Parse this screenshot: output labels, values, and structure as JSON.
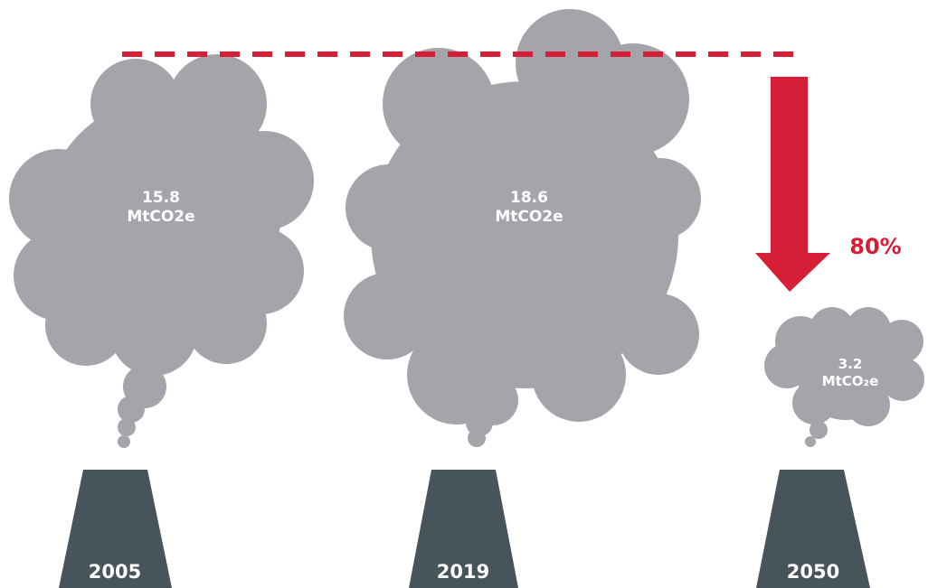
{
  "items": [
    {
      "year": "2005",
      "value": "15.8",
      "unit": "MtCO2e"
    },
    {
      "year": "2019",
      "value": "18.6",
      "unit": "MtCO2e"
    },
    {
      "year": "2050",
      "value": "3.2",
      "unit": "MtCO₂e"
    }
  ],
  "reduction": "80%"
}
